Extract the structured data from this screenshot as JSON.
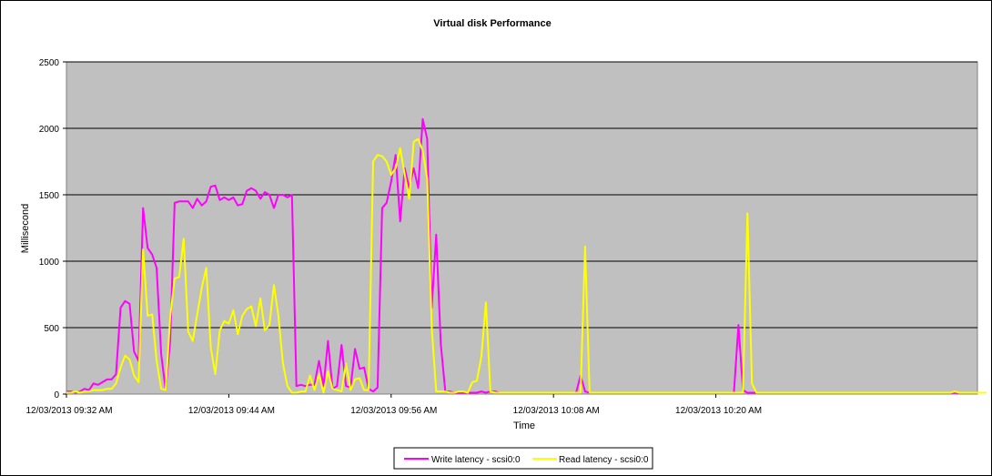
{
  "chart_data": {
    "type": "line",
    "title": "Virtual disk Performance",
    "xlabel": "Time",
    "ylabel": "Millisecond",
    "ylim": [
      0,
      2500
    ],
    "yticks": [
      0,
      500,
      1000,
      1500,
      2000,
      2500
    ],
    "x_ticks": [
      "12/03/2013 09:32 AM",
      "12/03/2013 09:44 AM",
      "12/03/2013 09:56 AM",
      "12/03/2013 10:08 AM",
      "12/03/2013 10:20 AM"
    ],
    "x_tick_index": [
      0,
      36,
      72,
      108,
      144
    ],
    "grid": "horizontal",
    "plot_background": "#c0c0c0",
    "legend_position": "bottom",
    "series": [
      {
        "name": "Write latency - scsi0:0",
        "color": "#ff00ff",
        "values": [
          20,
          20,
          10,
          20,
          40,
          30,
          80,
          70,
          90,
          110,
          110,
          150,
          650,
          700,
          680,
          320,
          250,
          1400,
          1100,
          1050,
          950,
          300,
          30,
          400,
          1440,
          1450,
          1450,
          1450,
          1400,
          1470,
          1420,
          1450,
          1560,
          1570,
          1460,
          1480,
          1460,
          1480,
          1420,
          1430,
          1530,
          1550,
          1530,
          1470,
          1520,
          1500,
          1400,
          1500,
          1500,
          1480,
          1500,
          60,
          70,
          60,
          70,
          70,
          250,
          60,
          400,
          40,
          60,
          370,
          60,
          50,
          340,
          190,
          200,
          40,
          20,
          50,
          1400,
          1440,
          1600,
          1800,
          1300,
          1700,
          1550,
          1700,
          1550,
          2070,
          1920,
          650,
          1200,
          380,
          20,
          20,
          10,
          10,
          10,
          10,
          10,
          10,
          20,
          10,
          20,
          20,
          10,
          10,
          10,
          10,
          10,
          10,
          10,
          10,
          10,
          10,
          10,
          10,
          10,
          10,
          10,
          10,
          10,
          10,
          140,
          20,
          10,
          10,
          10,
          10,
          10,
          10,
          10,
          10,
          10,
          10,
          10,
          10,
          10,
          10,
          10,
          10,
          10,
          10,
          10,
          10,
          10,
          10,
          10,
          10,
          10,
          10,
          10,
          10,
          10,
          10,
          10,
          10,
          10,
          520,
          30,
          10,
          10,
          10,
          10,
          10,
          10,
          10,
          10,
          10,
          10,
          10,
          10,
          10,
          10,
          10,
          10,
          10,
          10,
          10,
          10,
          10,
          10,
          10,
          10,
          10,
          10,
          10,
          10,
          10,
          10,
          10,
          10,
          10,
          10,
          10,
          10,
          10,
          10,
          10,
          10,
          10,
          10,
          10,
          10,
          10,
          10,
          10,
          10,
          10,
          10,
          10,
          10
        ]
      },
      {
        "name": "Read latency - scsi0:0",
        "color": "#ffff00",
        "values": [
          10,
          10,
          20,
          10,
          20,
          20,
          30,
          30,
          30,
          40,
          40,
          80,
          200,
          290,
          260,
          140,
          90,
          1090,
          590,
          600,
          250,
          40,
          30,
          580,
          870,
          880,
          1170,
          470,
          400,
          600,
          800,
          950,
          350,
          150,
          480,
          550,
          530,
          630,
          450,
          590,
          640,
          660,
          510,
          720,
          480,
          520,
          820,
          590,
          230,
          60,
          10,
          10,
          20,
          20,
          140,
          30,
          150,
          10,
          170,
          40,
          30,
          20,
          230,
          30,
          110,
          120,
          30,
          30,
          1750,
          1800,
          1790,
          1750,
          1650,
          1700,
          1850,
          1650,
          1470,
          1900,
          1920,
          1830,
          1620,
          500,
          20,
          20,
          20,
          10,
          10,
          20,
          20,
          10,
          90,
          100,
          280,
          690,
          20,
          10,
          10,
          10,
          10,
          10,
          10,
          10,
          10,
          10,
          10,
          10,
          10,
          10,
          10,
          10,
          10,
          10,
          10,
          10,
          10,
          1110,
          10,
          10,
          10,
          10,
          10,
          10,
          10,
          10,
          10,
          10,
          10,
          10,
          10,
          10,
          10,
          10,
          10,
          10,
          10,
          10,
          10,
          10,
          10,
          10,
          10,
          10,
          10,
          10,
          10,
          10,
          10,
          10,
          10,
          10,
          10,
          1360,
          80,
          10,
          10,
          10,
          10,
          10,
          10,
          10,
          10,
          10,
          10,
          10,
          10,
          10,
          10,
          10,
          10,
          10,
          10,
          10,
          10,
          10,
          10,
          10,
          10,
          10,
          10,
          10,
          10,
          10,
          10,
          10,
          10,
          10,
          10,
          10,
          10,
          10,
          10,
          10,
          10,
          10,
          10,
          10,
          10,
          20,
          10,
          10,
          10,
          10,
          10,
          10,
          10
        ]
      }
    ]
  }
}
